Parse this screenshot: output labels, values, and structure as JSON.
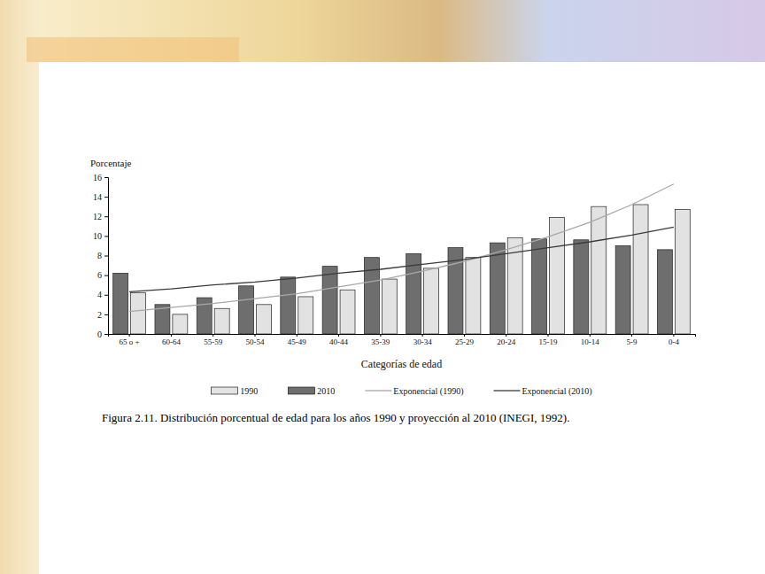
{
  "chart_data": {
    "type": "bar",
    "title": "Figura 2.11. Distribución porcentual de edad para los años 1990 y proyección al 2010 (INEGI, 1992).",
    "y_label": "Porcentaje",
    "x_label": "Categorías de edad",
    "categories": [
      "65 o +",
      "60-64",
      "55-59",
      "50-54",
      "45-49",
      "40-44",
      "35-39",
      "30-34",
      "25-29",
      "20-24",
      "15-19",
      "10-14",
      "5-9",
      "0-4"
    ],
    "series": [
      {
        "name": "1990",
        "type": "bar",
        "color": "#e2e2e2",
        "values": [
          4.2,
          2.0,
          2.6,
          3.0,
          3.8,
          4.5,
          5.6,
          6.7,
          7.8,
          9.8,
          11.9,
          13.0,
          13.2,
          12.7
        ]
      },
      {
        "name": "2010",
        "type": "bar",
        "color": "#6e6e6e",
        "values": [
          6.2,
          3.0,
          3.7,
          4.9,
          5.8,
          6.9,
          7.8,
          8.2,
          8.8,
          9.3,
          9.7,
          9.6,
          9.0,
          8.6
        ]
      },
      {
        "name": "Exponencial (1990)",
        "type": "line",
        "color": "#a8a8a8",
        "line_style": "solid",
        "values": [
          2.3,
          2.7,
          3.1,
          3.6,
          4.1,
          4.8,
          5.5,
          6.4,
          7.4,
          8.6,
          9.9,
          11.4,
          13.2,
          15.3
        ]
      },
      {
        "name": "Exponencial (2010)",
        "type": "line",
        "color": "#3a3a3a",
        "line_style": "solid",
        "values": [
          4.3,
          4.6,
          5.0,
          5.3,
          5.7,
          6.2,
          6.6,
          7.1,
          7.6,
          8.2,
          8.8,
          9.4,
          10.1,
          10.9
        ]
      }
    ],
    "ylim": [
      0,
      16
    ],
    "yticks": [
      0,
      2,
      4,
      6,
      8,
      10,
      12,
      14,
      16
    ],
    "grid": false,
    "legend": "bottom"
  }
}
